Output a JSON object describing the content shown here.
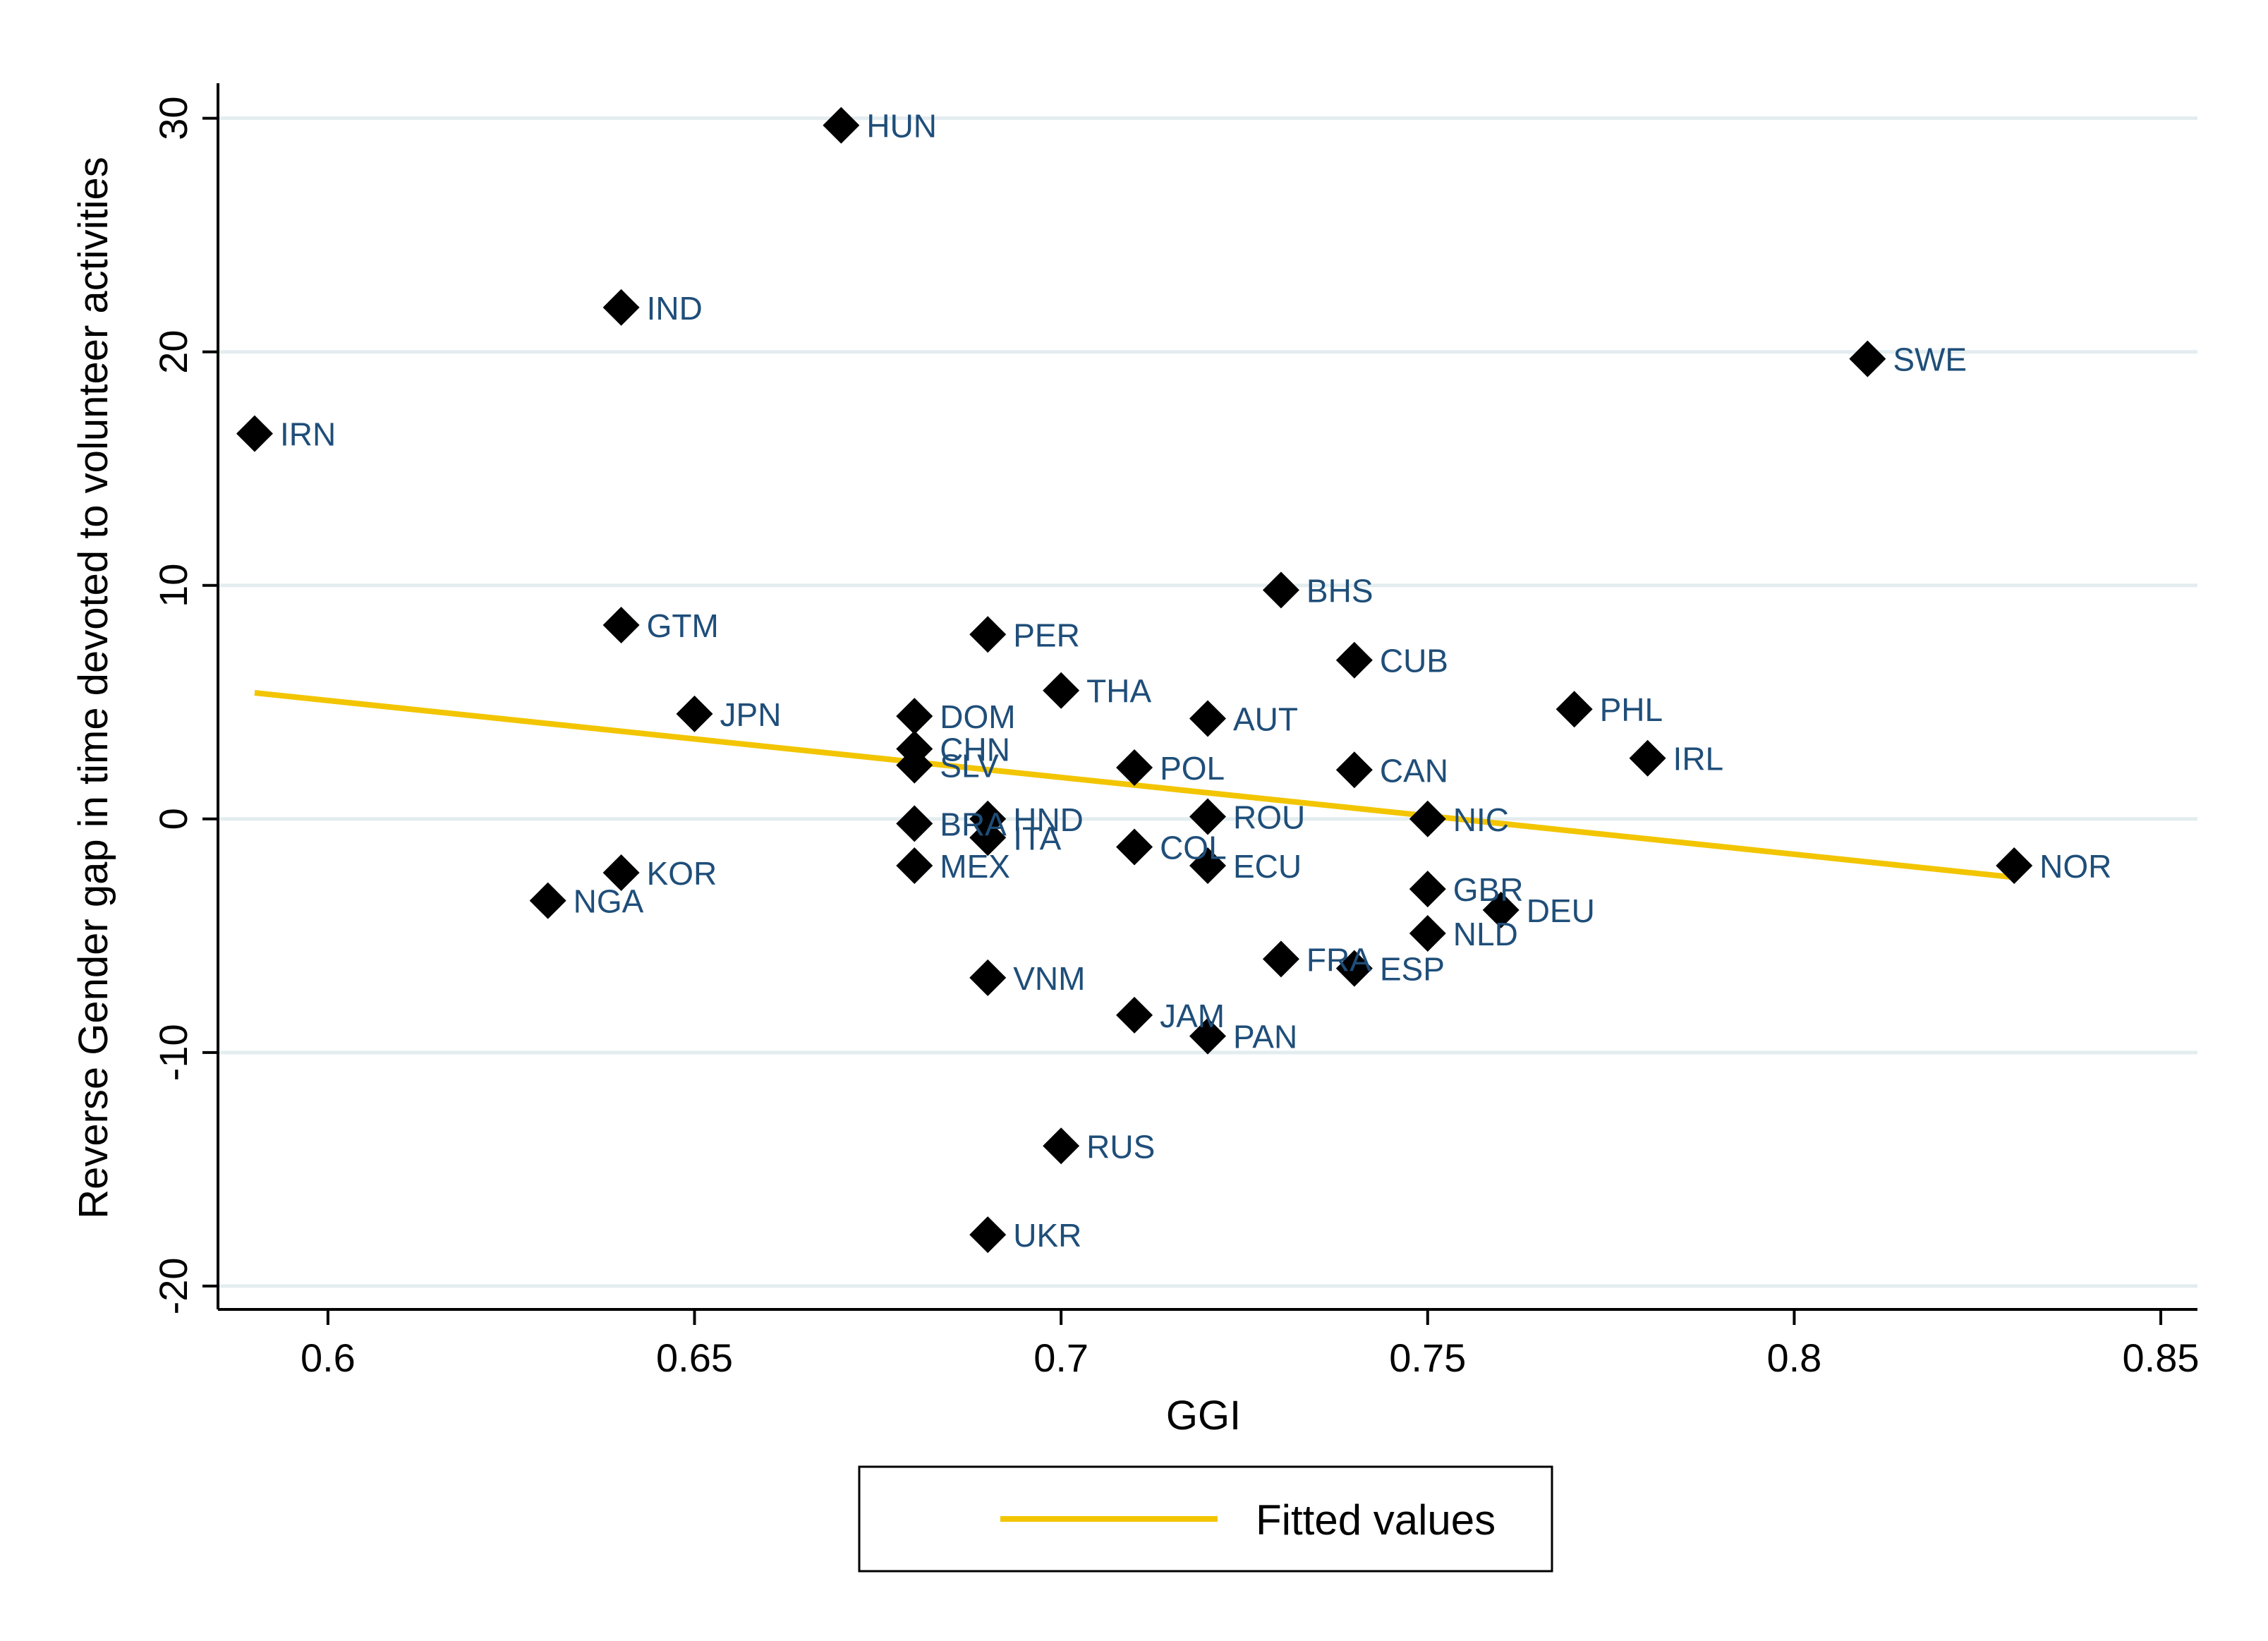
{
  "colors": {
    "fitted_line": "#f2c500",
    "marker": "#000000",
    "label": "#1f4e79",
    "grid": "#e3edf0",
    "axis": "#000000"
  },
  "chart_data": {
    "type": "scatter",
    "title": "",
    "xlabel": "GGI",
    "ylabel": "Reverse Gender gap in time devoted to volunteer activities",
    "xlim": [
      0.585,
      0.855
    ],
    "ylim": [
      -21,
      31.5
    ],
    "x_ticks": [
      0.6,
      0.65,
      0.7,
      0.75,
      0.8,
      0.85
    ],
    "x_tick_labels": [
      "0.6",
      "0.65",
      "0.7",
      "0.75",
      "0.8",
      "0.85"
    ],
    "y_ticks": [
      -20,
      -10,
      0,
      10,
      20,
      30
    ],
    "y_tick_labels": [
      "-20",
      "-10",
      "0",
      "10",
      "20",
      "30"
    ],
    "grid": "horizontal",
    "legend": {
      "placement": "bottom-center",
      "entries": [
        {
          "label": "Fitted values",
          "type": "line"
        }
      ]
    },
    "points": [
      {
        "label": "HUN",
        "x": 0.67,
        "y": 29.7
      },
      {
        "label": "IND",
        "x": 0.64,
        "y": 21.9
      },
      {
        "label": "SWE",
        "x": 0.81,
        "y": 19.7
      },
      {
        "label": "IRN",
        "x": 0.59,
        "y": 16.5
      },
      {
        "label": "BHS",
        "x": 0.73,
        "y": 9.8
      },
      {
        "label": "GTM",
        "x": 0.64,
        "y": 8.3
      },
      {
        "label": "PER",
        "x": 0.69,
        "y": 7.9
      },
      {
        "label": "CUB",
        "x": 0.74,
        "y": 6.8
      },
      {
        "label": "THA",
        "x": 0.7,
        "y": 5.5
      },
      {
        "label": "PHL",
        "x": 0.77,
        "y": 4.7
      },
      {
        "label": "JPN",
        "x": 0.65,
        "y": 4.5
      },
      {
        "label": "DOM",
        "x": 0.68,
        "y": 4.4
      },
      {
        "label": "AUT",
        "x": 0.72,
        "y": 4.3
      },
      {
        "label": "CHN",
        "x": 0.68,
        "y": 3.0
      },
      {
        "label": "IRL",
        "x": 0.78,
        "y": 2.6
      },
      {
        "label": "SLV",
        "x": 0.68,
        "y": 2.3
      },
      {
        "label": "POL",
        "x": 0.71,
        "y": 2.2
      },
      {
        "label": "CAN",
        "x": 0.74,
        "y": 2.1
      },
      {
        "label": "ROU",
        "x": 0.72,
        "y": 0.1
      },
      {
        "label": "NIC",
        "x": 0.75,
        "y": 0.0
      },
      {
        "label": "HND",
        "x": 0.69,
        "y": 0.0
      },
      {
        "label": "BRA",
        "x": 0.68,
        "y": -0.2
      },
      {
        "label": "ITA",
        "x": 0.69,
        "y": -0.8
      },
      {
        "label": "COL",
        "x": 0.71,
        "y": -1.2
      },
      {
        "label": "MEX",
        "x": 0.68,
        "y": -2.0
      },
      {
        "label": "ECU",
        "x": 0.72,
        "y": -2.0
      },
      {
        "label": "NOR",
        "x": 0.83,
        "y": -2.0
      },
      {
        "label": "KOR",
        "x": 0.64,
        "y": -2.3
      },
      {
        "label": "GBR",
        "x": 0.75,
        "y": -3.0
      },
      {
        "label": "NGA",
        "x": 0.63,
        "y": -3.5
      },
      {
        "label": "DEU",
        "x": 0.76,
        "y": -3.9
      },
      {
        "label": "NLD",
        "x": 0.75,
        "y": -4.9
      },
      {
        "label": "FRA",
        "x": 0.73,
        "y": -6.0
      },
      {
        "label": "ESP",
        "x": 0.74,
        "y": -6.4
      },
      {
        "label": "VNM",
        "x": 0.69,
        "y": -6.8
      },
      {
        "label": "JAM",
        "x": 0.71,
        "y": -8.4
      },
      {
        "label": "PAN",
        "x": 0.72,
        "y": -9.3
      },
      {
        "label": "RUS",
        "x": 0.7,
        "y": -14.0
      },
      {
        "label": "UKR",
        "x": 0.69,
        "y": -17.8
      }
    ],
    "fitted_line": {
      "name": "Fitted values",
      "x": [
        0.59,
        0.83
      ],
      "y": [
        5.4,
        -2.5
      ]
    }
  }
}
